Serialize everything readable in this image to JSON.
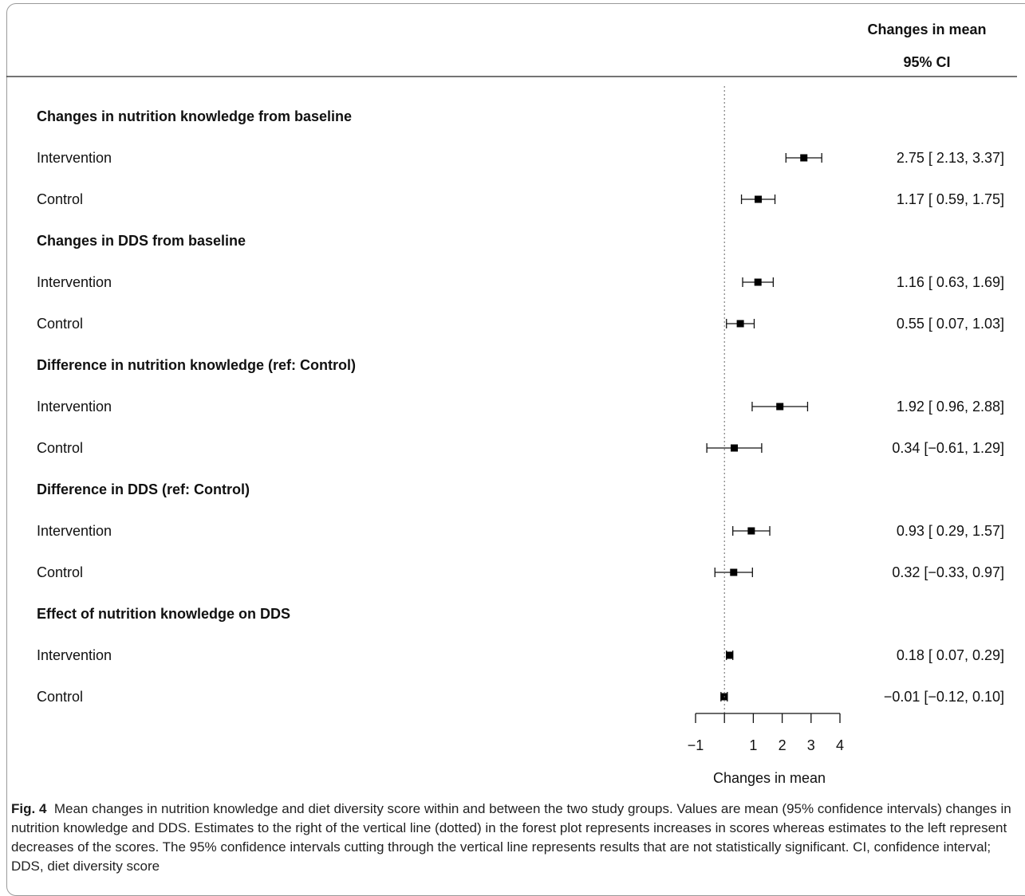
{
  "header": {
    "col_title": "Changes in mean",
    "col_subtitle": "95% CI"
  },
  "caption": {
    "label": "Fig. 4",
    "text": "Mean changes in nutrition knowledge and diet diversity score within and between the two study groups. Values are mean (95% confidence intervals) changes in nutrition knowledge and DDS. Estimates to the right of the vertical line (dotted) in the forest plot represents increases in scores whereas estimates to the left represent decreases of the scores. The 95% confidence intervals cutting through the vertical line represents results that are not statistically significant. CI, confidence interval; DDS, diet diversity score"
  },
  "chart_data": {
    "type": "forest",
    "xlabel": "Changes in mean",
    "xlim": [
      -1,
      4
    ],
    "xticks": [
      -1,
      0,
      1,
      2,
      3,
      4
    ],
    "xtick_labels": [
      "−1",
      "",
      "1",
      "2",
      "3",
      "4"
    ],
    "reference_line": 0,
    "reference_line_style": "dotted",
    "groups": [
      {
        "title": "Changes in nutrition knowledge from baseline",
        "rows": [
          {
            "label": "Intervention",
            "mean": 2.75,
            "lower": 2.13,
            "upper": 3.37,
            "ci_text": "2.75 [ 2.13, 3.37]"
          },
          {
            "label": "Control",
            "mean": 1.17,
            "lower": 0.59,
            "upper": 1.75,
            "ci_text": "1.17 [ 0.59, 1.75]"
          }
        ]
      },
      {
        "title": "Changes in DDS from baseline",
        "rows": [
          {
            "label": "Intervention",
            "mean": 1.16,
            "lower": 0.63,
            "upper": 1.69,
            "ci_text": "1.16 [ 0.63, 1.69]"
          },
          {
            "label": "Control",
            "mean": 0.55,
            "lower": 0.07,
            "upper": 1.03,
            "ci_text": "0.55 [ 0.07, 1.03]"
          }
        ]
      },
      {
        "title": "Difference in nutrition knowledge (ref: Control)",
        "rows": [
          {
            "label": "Intervention",
            "mean": 1.92,
            "lower": 0.96,
            "upper": 2.88,
            "ci_text": "1.92 [ 0.96, 2.88]"
          },
          {
            "label": "Control",
            "mean": 0.34,
            "lower": -0.61,
            "upper": 1.29,
            "ci_text": "0.34 [−0.61, 1.29]"
          }
        ]
      },
      {
        "title": "Difference in DDS (ref: Control)",
        "rows": [
          {
            "label": "Intervention",
            "mean": 0.93,
            "lower": 0.29,
            "upper": 1.57,
            "ci_text": "0.93 [ 0.29, 1.57]"
          },
          {
            "label": "Control",
            "mean": 0.32,
            "lower": -0.33,
            "upper": 0.97,
            "ci_text": "0.32 [−0.33, 0.97]"
          }
        ]
      },
      {
        "title": "Effect of nutrition knowledge on DDS",
        "rows": [
          {
            "label": "Intervention",
            "mean": 0.18,
            "lower": 0.07,
            "upper": 0.29,
            "ci_text": "0.18 [ 0.07, 0.29]"
          },
          {
            "label": "Control",
            "mean": -0.01,
            "lower": -0.12,
            "upper": 0.1,
            "ci_text": "−0.01 [−0.12, 0.10]"
          }
        ]
      }
    ]
  }
}
